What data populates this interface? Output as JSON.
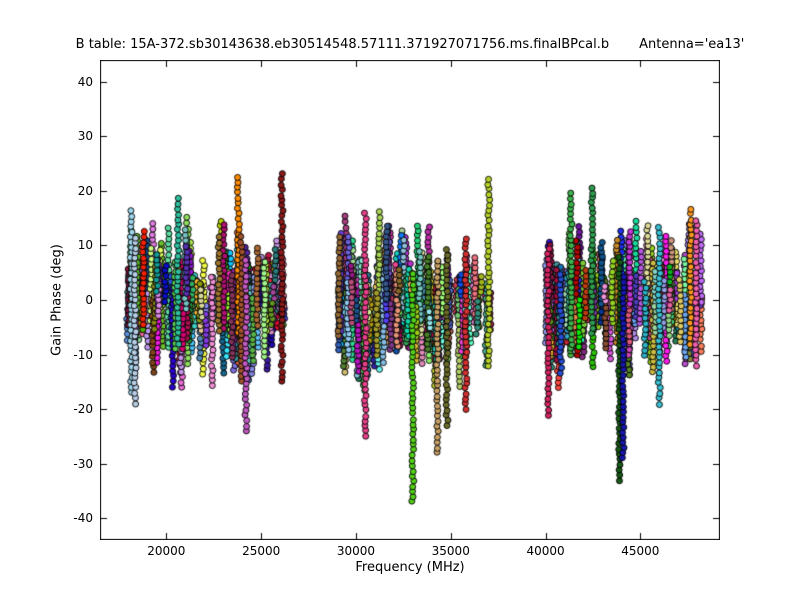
{
  "chart_data": {
    "type": "scatter",
    "title": "B table: 15A-372.sb30143638.eb30514548.57111.371927071756.ms.finalBPcal.b",
    "annotation": "Antenna='ea13'",
    "xlabel": "Frequency (MHz)",
    "ylabel": "Gain Phase (deg)",
    "xlim": [
      16500,
      49200
    ],
    "ylim": [
      -44,
      44
    ],
    "xticks": [
      20000,
      25000,
      30000,
      35000,
      40000,
      45000
    ],
    "xtick_labels": [
      "20000",
      "25000",
      "30000",
      "35000",
      "40000",
      "45000"
    ],
    "yticks": [
      -40,
      -30,
      -20,
      -10,
      0,
      10,
      20,
      30,
      40
    ],
    "ytick_labels": [
      "-40",
      "-30",
      "-20",
      "-10",
      "0",
      "10",
      "20",
      "30",
      "40"
    ],
    "grid": false,
    "legend": null,
    "marker": {
      "shape": "circle",
      "radius_px": 3,
      "edge_color": "#000000"
    },
    "axis_color": "#000000",
    "background_color": "#ffffff",
    "seed": 20150372,
    "bands": [
      {
        "name": "band-1",
        "freq_min": 17900,
        "freq_max": 26200,
        "columns": 155,
        "core_spread_deg": [
          -12,
          12
        ]
      },
      {
        "name": "band-2",
        "freq_min": 29000,
        "freq_max": 37100,
        "columns": 155,
        "core_spread_deg": [
          -13,
          13
        ]
      },
      {
        "name": "band-3",
        "freq_min": 40000,
        "freq_max": 48200,
        "columns": 155,
        "core_spread_deg": [
          -12,
          13
        ]
      }
    ],
    "outlier_columns": [
      {
        "freq": 18150,
        "phase_min": -17,
        "phase_max": 17,
        "color": "#9fd8ef"
      },
      {
        "freq": 18350,
        "phase_min": -19,
        "phase_max": 12,
        "color": "#b8cfe8"
      },
      {
        "freq": 20600,
        "phase_min": -8,
        "phase_max": 19.5,
        "color": "#2fbf9f"
      },
      {
        "freq": 23800,
        "phase_min": -6,
        "phase_max": 23,
        "color": "#ff8c00"
      },
      {
        "freq": 23950,
        "phase_min": -15,
        "phase_max": 12,
        "color": "#a0522d"
      },
      {
        "freq": 24200,
        "phase_min": -24,
        "phase_max": 8,
        "color": "#c45ac4"
      },
      {
        "freq": 26100,
        "phase_min": -15,
        "phase_max": 23.5,
        "color": "#8b1a1a"
      },
      {
        "freq": 30500,
        "phase_min": -25,
        "phase_max": 16,
        "color": "#e8418c"
      },
      {
        "freq": 33000,
        "phase_min": -37,
        "phase_max": 5,
        "color": "#52d017"
      },
      {
        "freq": 34300,
        "phase_min": -28,
        "phase_max": 8,
        "color": "#c8a165"
      },
      {
        "freq": 34800,
        "phase_min": -23,
        "phase_max": 10,
        "color": "#6b6b2a"
      },
      {
        "freq": 35800,
        "phase_min": -20,
        "phase_max": 12,
        "color": "#d63031"
      },
      {
        "freq": 37000,
        "phase_min": -12,
        "phase_max": 23,
        "color": "#b7d32a"
      },
      {
        "freq": 40150,
        "phase_min": -21,
        "phase_max": 10,
        "color": "#d62462"
      },
      {
        "freq": 41350,
        "phase_min": -9,
        "phase_max": 20,
        "color": "#3cb44b"
      },
      {
        "freq": 42450,
        "phase_min": -6,
        "phase_max": 21,
        "color": "#2e9e4f"
      },
      {
        "freq": 43900,
        "phase_min": -33,
        "phase_max": 8,
        "color": "#145a14"
      },
      {
        "freq": 44100,
        "phase_min": -29,
        "phase_max": 5,
        "color": "#1717b0"
      },
      {
        "freq": 46000,
        "phase_min": -19,
        "phase_max": 14,
        "color": "#39c0d4"
      },
      {
        "freq": 47650,
        "phase_min": -8,
        "phase_max": 17,
        "color": "#ff9a1f"
      },
      {
        "freq": 47950,
        "phase_min": -12,
        "phase_max": 15,
        "color": "#ef5fb0"
      }
    ]
  }
}
